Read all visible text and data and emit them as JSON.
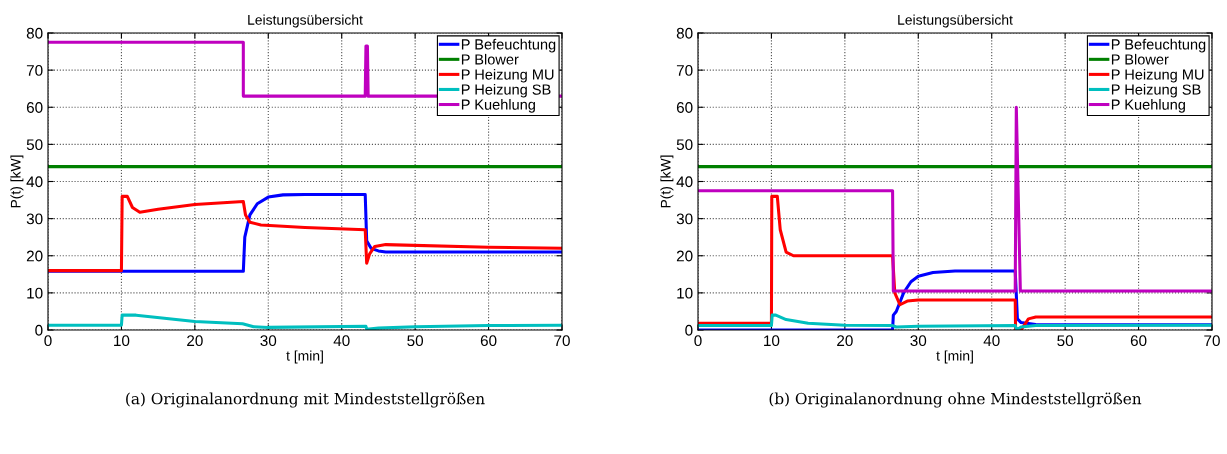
{
  "chart_data": [
    {
      "type": "line",
      "title": "Leistungsübersicht",
      "xlabel": "t [min]",
      "ylabel": "P(t) [kW]",
      "xlim": [
        0,
        70
      ],
      "ylim": [
        0,
        80
      ],
      "xticks": [
        0,
        10,
        20,
        30,
        40,
        50,
        60,
        70
      ],
      "yticks": [
        0,
        10,
        20,
        30,
        40,
        50,
        60,
        70,
        80
      ],
      "grid": true,
      "legend": "top right",
      "annotations": [
        "(a) Originalanordnung mit Mindeststellgrößen"
      ],
      "series": [
        {
          "name": "P Befeuchtung",
          "color": "#0000ff",
          "x": [
            0,
            26.6,
            26.8,
            27.5,
            28.5,
            30,
            32,
            35,
            43.2,
            43.4,
            44,
            45,
            46,
            50,
            70
          ],
          "values": [
            15.8,
            15.8,
            25,
            31,
            34,
            35.8,
            36.4,
            36.5,
            36.5,
            24,
            22,
            21.3,
            21,
            21,
            21
          ]
        },
        {
          "name": "P Blower",
          "color": "#008000",
          "x": [
            0,
            70
          ],
          "values": [
            44,
            44
          ]
        },
        {
          "name": "P Heizung MU",
          "color": "#ff0000",
          "x": [
            0,
            10,
            10.1,
            10.8,
            11.5,
            12.5,
            15,
            20,
            26.6,
            26.9,
            27.5,
            29,
            35,
            43.2,
            43.4,
            43.8,
            44.5,
            46,
            60,
            70
          ],
          "values": [
            16,
            16,
            36,
            36,
            33,
            31.7,
            32.5,
            33.8,
            34.6,
            31,
            29,
            28.3,
            27.6,
            27,
            18,
            20.5,
            22.5,
            23,
            22.3,
            22
          ]
        },
        {
          "name": "P Heizung SB",
          "color": "#00bfbf",
          "x": [
            0,
            10,
            10.1,
            12,
            20,
            26.5,
            28,
            30,
            43.3,
            43.4,
            45,
            50,
            60,
            70
          ],
          "values": [
            1.3,
            1.3,
            4,
            4,
            2.3,
            1.7,
            0.9,
            0.7,
            1.0,
            0.2,
            0.5,
            0.9,
            1.2,
            1.3
          ]
        },
        {
          "name": "P Kuehlung",
          "color": "#bf00bf",
          "x": [
            0,
            26.6,
            26.6,
            43.2,
            43.3,
            43.5,
            43.6,
            70
          ],
          "values": [
            77.5,
            77.5,
            63,
            63,
            76.5,
            76.5,
            63,
            63
          ]
        }
      ]
    },
    {
      "type": "line",
      "title": "Leistungsübersicht",
      "xlabel": "t [min]",
      "ylabel": "P(t) [kW]",
      "xlim": [
        0,
        70
      ],
      "ylim": [
        0,
        80
      ],
      "xticks": [
        0,
        10,
        20,
        30,
        40,
        50,
        60,
        70
      ],
      "yticks": [
        0,
        10,
        20,
        30,
        40,
        50,
        60,
        70,
        80
      ],
      "grid": true,
      "legend": "top right",
      "annotations": [
        "(b) Originalanordnung ohne Mindeststellgrößen"
      ],
      "series": [
        {
          "name": "P Befeuchtung",
          "color": "#0000ff",
          "x": [
            0,
            26.5,
            26.6,
            27,
            28,
            29,
            30,
            32,
            35,
            43.2,
            43.5,
            44,
            46,
            50,
            70
          ],
          "values": [
            0,
            0,
            4,
            5,
            10,
            13,
            14.5,
            15.5,
            15.9,
            15.9,
            3,
            2,
            1.5,
            1.4,
            1.4
          ]
        },
        {
          "name": "P Blower",
          "color": "#008000",
          "x": [
            0,
            70
          ],
          "values": [
            44,
            44
          ]
        },
        {
          "name": "P Heizung MU",
          "color": "#ff0000",
          "x": [
            0,
            10,
            10.05,
            10.8,
            11.2,
            12,
            13,
            20,
            26.5,
            26.8,
            27.5,
            28.5,
            30,
            43.2,
            43.25,
            44,
            45,
            46,
            70
          ],
          "values": [
            1.8,
            1.8,
            36,
            36,
            27,
            21,
            20,
            20,
            20,
            10,
            6.8,
            7.8,
            8.1,
            8.1,
            0,
            0,
            3,
            3.5,
            3.5
          ]
        },
        {
          "name": "P Heizung SB",
          "color": "#00bfbf",
          "x": [
            0,
            10,
            10.1,
            10.6,
            12,
            15,
            20,
            26.5,
            27,
            30,
            43.2,
            43.4,
            44,
            46,
            70
          ],
          "values": [
            1.2,
            1.2,
            4,
            4,
            2.8,
            1.8,
            1.3,
            1.2,
            0.8,
            1.0,
            1.2,
            0,
            0.8,
            1.2,
            1.3
          ]
        },
        {
          "name": "P Kuehlung",
          "color": "#bf00bf",
          "x": [
            0,
            26.5,
            26.6,
            43.2,
            43.35,
            43.9,
            70
          ],
          "values": [
            37.5,
            37.5,
            10.5,
            10.5,
            60,
            10.5,
            10.5
          ]
        }
      ]
    }
  ]
}
